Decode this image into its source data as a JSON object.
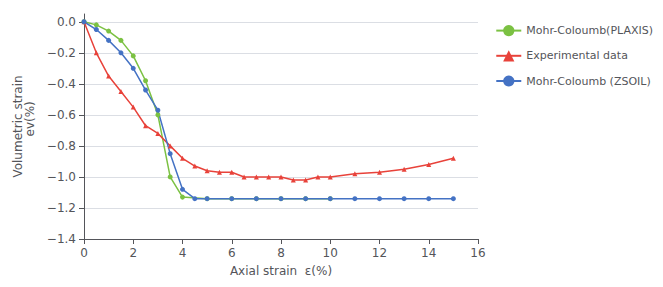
{
  "chart_data": {
    "type": "line",
    "xlabel": "Axial strain  ε(%)",
    "ylabel": "Volumetric strain\n    ev(%)",
    "xlim": [
      0,
      16
    ],
    "ylim": [
      -1.4,
      0.05
    ],
    "xticks": [
      0,
      2,
      4,
      6,
      8,
      10,
      12,
      14,
      16
    ],
    "yticks": [
      {
        "value": 0,
        "label": "0.0"
      },
      {
        "value": -0.2,
        "label": "−0.2"
      },
      {
        "value": -0.4,
        "label": "−0.4"
      },
      {
        "value": -0.6,
        "label": "−0.6"
      },
      {
        "value": -0.8,
        "label": "−0.8"
      },
      {
        "value": -1.0,
        "label": "−1.0"
      },
      {
        "value": -1.2,
        "label": "−1.2"
      },
      {
        "value": -1.4,
        "label": "−1.4"
      }
    ],
    "grid": true,
    "legend": "upper right",
    "series": [
      {
        "name": "Mohr-Coloumb(PLAXIS)",
        "color": "#7bc142",
        "marker": "circle",
        "x": [
          0,
          0.5,
          1.0,
          1.5,
          2.0,
          2.5,
          3.0,
          3.5,
          4.0,
          5.0,
          6.0,
          7.0,
          8.0,
          9.0,
          10.0
        ],
        "values": [
          0,
          -0.02,
          -0.06,
          -0.12,
          -0.22,
          -0.38,
          -0.6,
          -1.0,
          -1.13,
          -1.14,
          -1.14,
          -1.14,
          -1.14,
          -1.14,
          -1.14
        ]
      },
      {
        "name": "Experimental data",
        "color": "#e8423a",
        "marker": "triangle",
        "x": [
          0,
          0.5,
          1.0,
          1.5,
          2.0,
          2.5,
          3.0,
          3.5,
          4.0,
          4.5,
          5.0,
          5.5,
          6.0,
          6.5,
          7.0,
          7.5,
          8.0,
          8.5,
          9.0,
          9.5,
          10.0,
          11.0,
          12.0,
          13.0,
          14.0,
          15.0
        ],
        "values": [
          0,
          -0.2,
          -0.35,
          -0.45,
          -0.55,
          -0.67,
          -0.72,
          -0.8,
          -0.88,
          -0.93,
          -0.96,
          -0.97,
          -0.97,
          -1.0,
          -1.0,
          -1.0,
          -1.0,
          -1.02,
          -1.02,
          -1.0,
          -1.0,
          -0.98,
          -0.97,
          -0.95,
          -0.92,
          -0.88
        ]
      },
      {
        "name": "Mohr-Coloumb (ZSOIL)",
        "color": "#4472c4",
        "marker": "circle",
        "x": [
          0,
          0.5,
          1.0,
          1.5,
          2.0,
          2.5,
          3.0,
          3.5,
          4.0,
          4.5,
          5.0,
          6.0,
          7.0,
          8.0,
          9.0,
          10.0,
          11.0,
          12.0,
          13.0,
          14.0,
          15.0
        ],
        "values": [
          0,
          -0.05,
          -0.12,
          -0.2,
          -0.3,
          -0.44,
          -0.57,
          -0.85,
          -1.08,
          -1.14,
          -1.14,
          -1.14,
          -1.14,
          -1.14,
          -1.14,
          -1.14,
          -1.14,
          -1.14,
          -1.14,
          -1.14,
          -1.14
        ]
      }
    ]
  }
}
